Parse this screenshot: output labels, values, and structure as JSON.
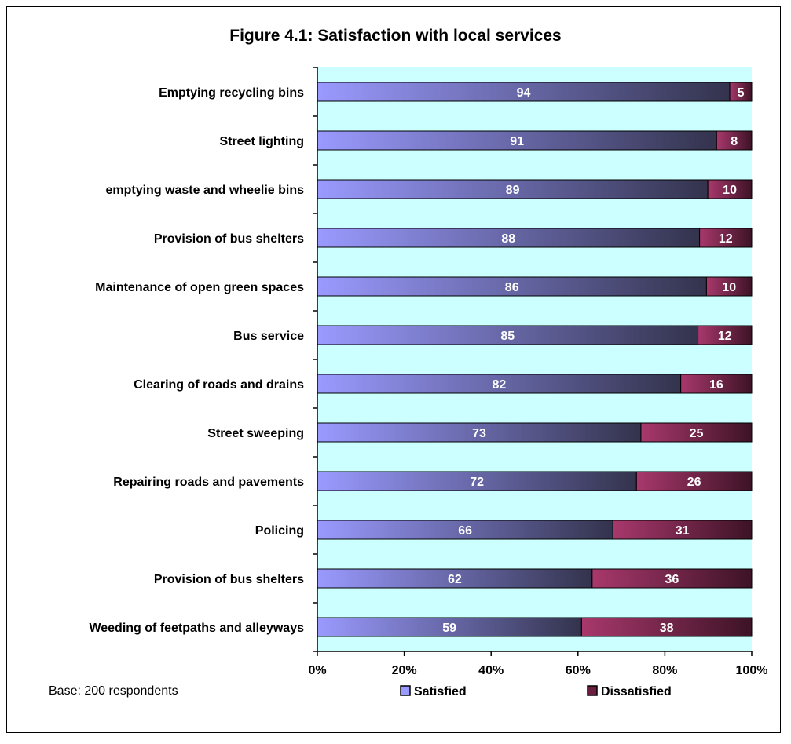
{
  "chart_data": {
    "type": "bar",
    "orientation": "horizontal",
    "stacked": true,
    "percent_stacked": true,
    "title": "Figure 4.1: Satisfaction with local services",
    "categories": [
      "Emptying recycling bins",
      "Street lighting",
      "emptying waste and wheelie bins",
      "Provision of bus shelters",
      "Maintenance of open green spaces",
      "Bus service",
      "Clearing of roads and drains",
      "Street sweeping",
      "Repairing roads and pavements",
      "Policing",
      "Provision of bus shelters",
      "Weeding of feetpaths and alleyways"
    ],
    "series": [
      {
        "name": "Satisfied",
        "values": [
          94,
          91,
          89,
          88,
          86,
          85,
          82,
          73,
          72,
          66,
          62,
          59
        ],
        "color": "#9999ff"
      },
      {
        "name": "Dissatisfied",
        "values": [
          5,
          8,
          10,
          12,
          10,
          12,
          16,
          25,
          26,
          31,
          36,
          38
        ],
        "color": "#993366"
      }
    ],
    "x_ticks": [
      "0%",
      "20%",
      "40%",
      "60%",
      "80%",
      "100%"
    ],
    "xlim": [
      0,
      100
    ],
    "plot_background": "#ccffff",
    "legend_position": "bottom",
    "grid": false
  },
  "footnote": "Base: 200 respondents"
}
